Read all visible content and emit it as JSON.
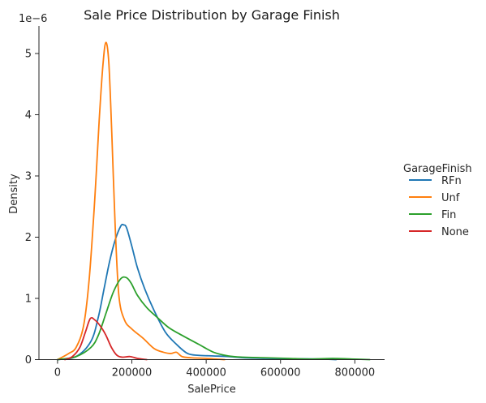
{
  "chart_data": {
    "type": "line",
    "title": "Sale Price Distribution by Garage Finish",
    "xlabel": "SalePrice",
    "ylabel": "Density",
    "y_scale_label": "1e−6",
    "xlim": [
      -50000,
      880000
    ],
    "ylim": [
      0,
      5.45
    ],
    "x_ticks": [
      0,
      200000,
      400000,
      600000,
      800000
    ],
    "x_tick_labels": [
      "0",
      "200000",
      "400000",
      "600000",
      "800000"
    ],
    "y_ticks": [
      0,
      1,
      2,
      3,
      4,
      5
    ],
    "y_tick_labels": [
      "0",
      "1",
      "2",
      "3",
      "4",
      "5"
    ],
    "grid": false,
    "legend_title": "GarageFinish",
    "legend_position": "right",
    "series": [
      {
        "name": "RFn",
        "color": "#1f77b4",
        "x": [
          0,
          50000,
          90000,
          110000,
          125000,
          140000,
          155000,
          170000,
          178000,
          186000,
          200000,
          215000,
          235000,
          260000,
          290000,
          320000,
          350000,
          380000,
          420000,
          460000,
          500000,
          560000,
          620000,
          700000,
          750000
        ],
        "y": [
          0.0,
          0.05,
          0.3,
          0.7,
          1.15,
          1.6,
          1.95,
          2.18,
          2.2,
          2.15,
          1.85,
          1.5,
          1.15,
          0.8,
          0.45,
          0.25,
          0.1,
          0.07,
          0.06,
          0.05,
          0.03,
          0.02,
          0.015,
          0.01,
          0.0
        ]
      },
      {
        "name": "Unf",
        "color": "#ff7f0e",
        "x": [
          0,
          30000,
          50000,
          70000,
          85000,
          100000,
          112000,
          122000,
          130000,
          138000,
          146000,
          155000,
          165000,
          180000,
          200000,
          230000,
          260000,
          285000,
          305000,
          320000,
          335000,
          360000,
          400000,
          450000
        ],
        "y": [
          0.0,
          0.1,
          0.2,
          0.55,
          1.3,
          2.6,
          3.9,
          4.8,
          5.18,
          4.85,
          3.7,
          2.2,
          1.05,
          0.65,
          0.5,
          0.35,
          0.18,
          0.12,
          0.1,
          0.12,
          0.05,
          0.03,
          0.02,
          0.0
        ]
      },
      {
        "name": "Fin",
        "color": "#2ca02c",
        "x": [
          0,
          50000,
          90000,
          110000,
          130000,
          150000,
          170000,
          185000,
          198000,
          215000,
          240000,
          270000,
          300000,
          340000,
          380000,
          420000,
          460000,
          500000,
          560000,
          620000,
          680000,
          740000,
          790000,
          840000
        ],
        "y": [
          0.0,
          0.05,
          0.2,
          0.4,
          0.75,
          1.1,
          1.32,
          1.34,
          1.25,
          1.05,
          0.85,
          0.68,
          0.52,
          0.38,
          0.25,
          0.12,
          0.06,
          0.04,
          0.03,
          0.02,
          0.01,
          0.02,
          0.01,
          0.0
        ]
      },
      {
        "name": "None",
        "color": "#d62728",
        "x": [
          20000,
          40000,
          60000,
          75000,
          88000,
          100000,
          115000,
          130000,
          145000,
          160000,
          175000,
          195000,
          215000,
          240000
        ],
        "y": [
          0.0,
          0.05,
          0.2,
          0.45,
          0.67,
          0.65,
          0.55,
          0.4,
          0.2,
          0.07,
          0.04,
          0.05,
          0.02,
          0.0
        ]
      }
    ]
  }
}
